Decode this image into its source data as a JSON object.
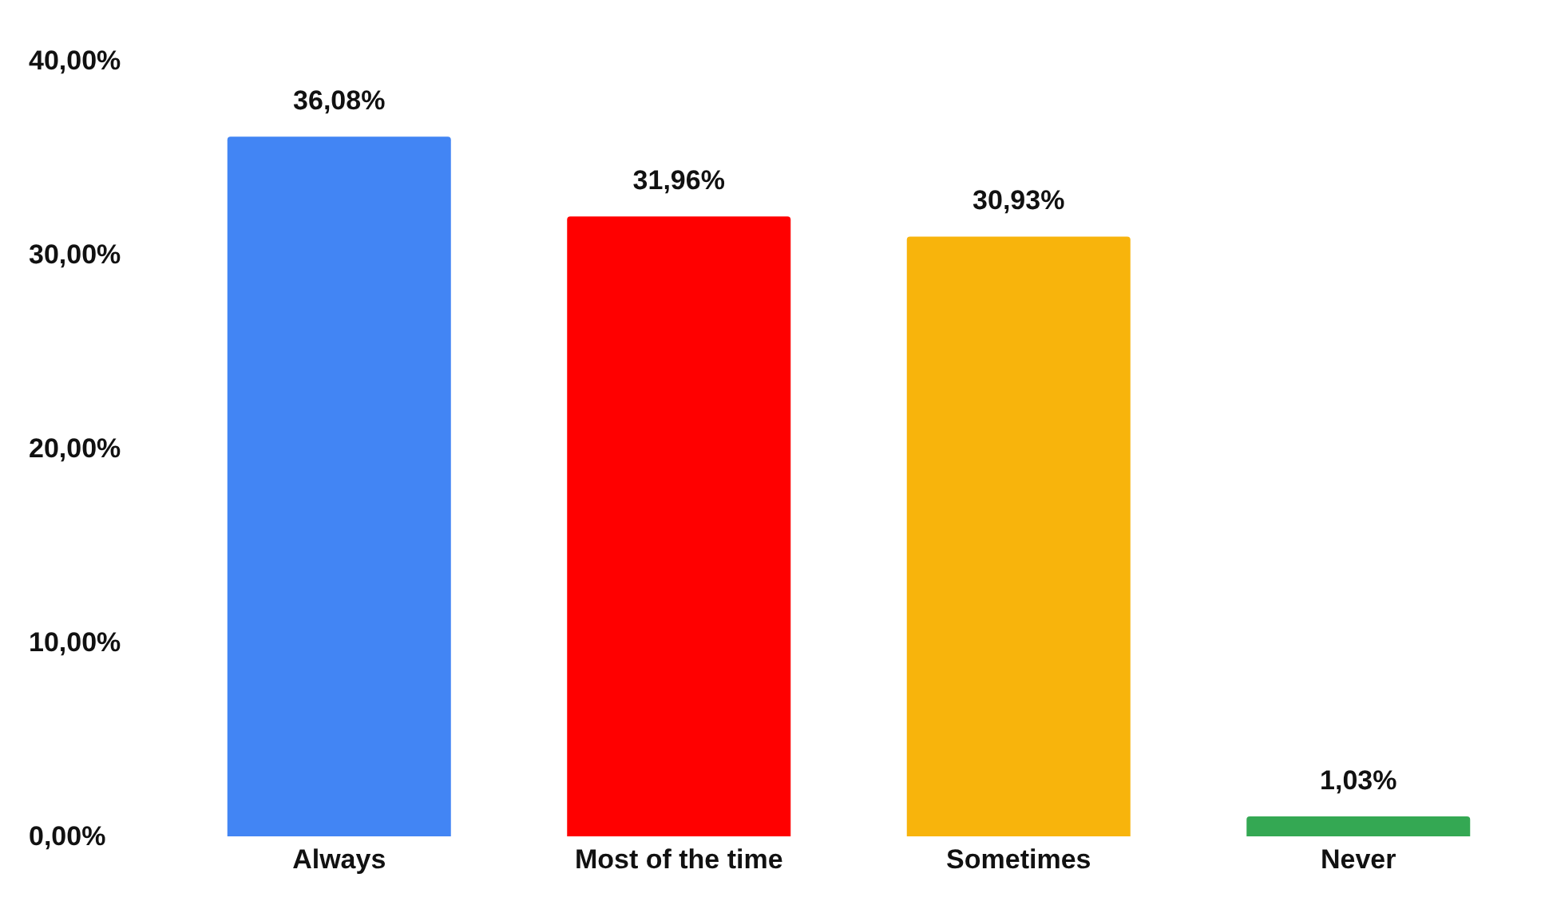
{
  "chart_data": {
    "type": "bar",
    "categories": [
      "Always",
      "Most of the time",
      "Sometimes",
      "Never"
    ],
    "values": [
      36.08,
      31.96,
      30.93,
      1.03
    ],
    "colors": [
      "#4285f4",
      "#ff0000",
      "#f8b40c",
      "#34a853"
    ],
    "value_labels": [
      "36,08%",
      "31,96%",
      "30,93%",
      "1,03%"
    ],
    "ylim": [
      0,
      40
    ],
    "yticks": [
      {
        "value": 0,
        "label": "0,00%"
      },
      {
        "value": 10,
        "label": "10,00%"
      },
      {
        "value": 20,
        "label": "20,00%"
      },
      {
        "value": 30,
        "label": "30,00%"
      },
      {
        "value": 40,
        "label": "40,00%"
      }
    ],
    "grid": false
  }
}
